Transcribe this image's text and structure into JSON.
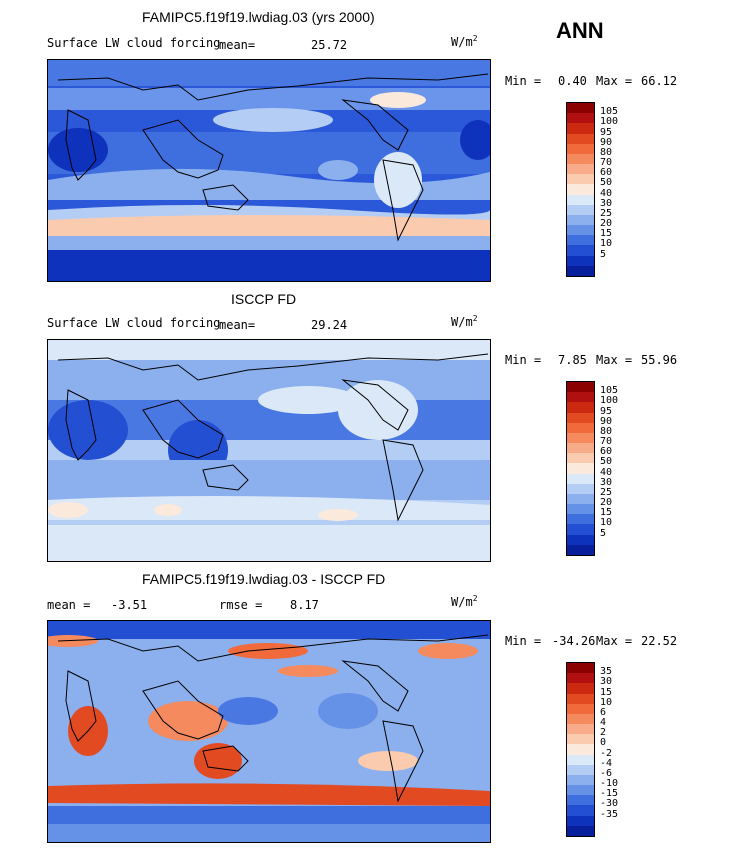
{
  "season": "ANN",
  "panels": [
    {
      "id": "model",
      "title": "FAMIPC5.f19f19.lwdiag.03 (yrs 2000)",
      "left_label": "Surface LW cloud forcing",
      "mean_label": "mean=",
      "mean_value": "25.72",
      "units": "W/m",
      "units_exp": "2",
      "min_label": "Min =",
      "min_value": "0.40",
      "max_label": "Max =",
      "max_value": "66.12",
      "colorbar": {
        "colors": [
          "#8b0000",
          "#b01010",
          "#cc2a10",
          "#e24a22",
          "#f06a3c",
          "#f58a5e",
          "#f8ab88",
          "#fbcbb0",
          "#fbe9dc",
          "#dbe8f8",
          "#b4cdf4",
          "#8cb0ee",
          "#6591e6",
          "#3f6fde",
          "#2350d2",
          "#0e32bc",
          "#081f9c"
        ],
        "ticks": [
          "105",
          "100",
          "95",
          "90",
          "80",
          "70",
          "60",
          "50",
          "40",
          "30",
          "25",
          "20",
          "15",
          "10",
          "5"
        ]
      }
    },
    {
      "id": "obs",
      "title": "ISCCP FD",
      "left_label": "Surface LW cloud forcing",
      "mean_label": "mean=",
      "mean_value": "29.24",
      "units": "W/m",
      "units_exp": "2",
      "min_label": "Min =",
      "min_value": "7.85",
      "max_label": "Max =",
      "max_value": "55.96",
      "colorbar": {
        "colors": [
          "#8b0000",
          "#b01010",
          "#cc2a10",
          "#e24a22",
          "#f06a3c",
          "#f58a5e",
          "#f8ab88",
          "#fbcbb0",
          "#fbe9dc",
          "#dbe8f8",
          "#b4cdf4",
          "#8cb0ee",
          "#6591e6",
          "#3f6fde",
          "#2350d2",
          "#0e32bc",
          "#081f9c"
        ],
        "ticks": [
          "105",
          "100",
          "95",
          "90",
          "80",
          "70",
          "60",
          "50",
          "40",
          "30",
          "25",
          "20",
          "15",
          "10",
          "5"
        ]
      }
    },
    {
      "id": "diff",
      "title": "FAMIPC5.f19f19.lwdiag.03 - ISCCP FD",
      "left_label": "mean =",
      "mean_label": "",
      "mean_value": "-3.51",
      "rmse_label": "rmse =",
      "rmse_value": "8.17",
      "units": "W/m",
      "units_exp": "2",
      "min_label": "Min =",
      "min_value": "-34.26",
      "max_label": "Max =",
      "max_value": "22.52",
      "colorbar": {
        "colors": [
          "#8b0000",
          "#b01010",
          "#cc2a10",
          "#e24a22",
          "#f06a3c",
          "#f58a5e",
          "#f8ab88",
          "#fbcbb0",
          "#fbe9dc",
          "#dbe8f8",
          "#b4cdf4",
          "#8cb0ee",
          "#6591e6",
          "#3f6fde",
          "#2350d2",
          "#0e32bc",
          "#081f9c"
        ],
        "ticks": [
          "35",
          "30",
          "15",
          "10",
          "6",
          "4",
          "2",
          "0",
          "-2",
          "-4",
          "-6",
          "-10",
          "-15",
          "-30",
          "-35"
        ]
      }
    }
  ]
}
